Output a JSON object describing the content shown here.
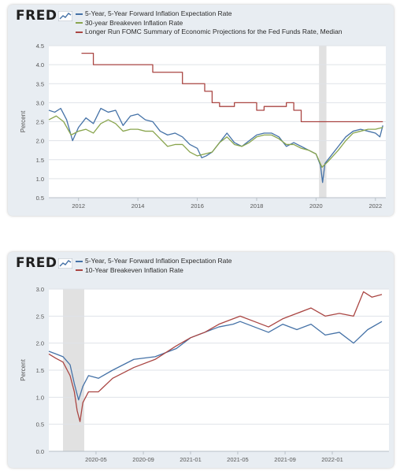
{
  "brand": {
    "logo_text": "FRED"
  },
  "colors": {
    "blue": "#4572a7",
    "green": "#89a54e",
    "red": "#aa4643",
    "recession": "#e1e1e1"
  },
  "chart_data": [
    {
      "type": "line",
      "title": "",
      "ylabel": "Percent",
      "xlabel": "",
      "ylim": [
        0.5,
        4.5
      ],
      "xlim": [
        2011.0,
        2022.35
      ],
      "y_ticks": [
        "0.5",
        "1.0",
        "1.5",
        "2.0",
        "2.5",
        "3.0",
        "3.5",
        "4.0",
        "4.5"
      ],
      "x_ticks": [
        "2012",
        "2014",
        "2016",
        "2018",
        "2020",
        "2022"
      ],
      "x_tick_values": [
        2012,
        2014,
        2016,
        2018,
        2020,
        2022
      ],
      "grid": true,
      "legend_position": "top-left",
      "shaded_periods": [
        [
          2020.1,
          2020.35
        ]
      ],
      "series": [
        {
          "name": "5-Year, 5-Year Forward Inflation Expectation Rate",
          "color": "#4572a7",
          "x": [
            2011.0,
            2011.2,
            2011.4,
            2011.6,
            2011.8,
            2012.0,
            2012.25,
            2012.5,
            2012.75,
            2013.0,
            2013.25,
            2013.5,
            2013.75,
            2014.0,
            2014.25,
            2014.5,
            2014.75,
            2015.0,
            2015.25,
            2015.5,
            2015.75,
            2016.0,
            2016.15,
            2016.3,
            2016.5,
            2016.75,
            2017.0,
            2017.25,
            2017.5,
            2017.75,
            2018.0,
            2018.25,
            2018.5,
            2018.75,
            2019.0,
            2019.25,
            2019.5,
            2019.75,
            2020.0,
            2020.15,
            2020.22,
            2020.3,
            2020.5,
            2020.75,
            2021.0,
            2021.25,
            2021.5,
            2021.75,
            2022.0,
            2022.15,
            2022.25
          ],
          "y": [
            2.8,
            2.75,
            2.85,
            2.55,
            2.0,
            2.35,
            2.6,
            2.45,
            2.85,
            2.75,
            2.8,
            2.4,
            2.65,
            2.7,
            2.55,
            2.5,
            2.25,
            2.15,
            2.2,
            2.1,
            1.9,
            1.8,
            1.55,
            1.6,
            1.7,
            1.95,
            2.2,
            1.95,
            1.85,
            2.0,
            2.15,
            2.2,
            2.2,
            2.1,
            1.85,
            1.95,
            1.85,
            1.75,
            1.65,
            1.35,
            0.9,
            1.4,
            1.6,
            1.85,
            2.1,
            2.25,
            2.3,
            2.25,
            2.2,
            2.1,
            2.4
          ]
        },
        {
          "name": "30-year Breakeven Inflation Rate",
          "color": "#89a54e",
          "x": [
            2011.0,
            2011.25,
            2011.5,
            2011.75,
            2012.0,
            2012.25,
            2012.5,
            2012.75,
            2013.0,
            2013.25,
            2013.5,
            2013.75,
            2014.0,
            2014.25,
            2014.5,
            2014.75,
            2015.0,
            2015.25,
            2015.5,
            2015.75,
            2016.0,
            2016.25,
            2016.5,
            2016.75,
            2017.0,
            2017.25,
            2017.5,
            2017.75,
            2018.0,
            2018.25,
            2018.5,
            2018.75,
            2019.0,
            2019.25,
            2019.5,
            2019.75,
            2020.0,
            2020.2,
            2020.4,
            2020.75,
            2021.0,
            2021.25,
            2021.5,
            2021.75,
            2022.0,
            2022.25
          ],
          "y": [
            2.55,
            2.65,
            2.5,
            2.15,
            2.25,
            2.3,
            2.2,
            2.45,
            2.55,
            2.45,
            2.25,
            2.3,
            2.3,
            2.25,
            2.25,
            2.05,
            1.85,
            1.9,
            1.9,
            1.7,
            1.6,
            1.65,
            1.7,
            1.95,
            2.1,
            1.9,
            1.85,
            1.95,
            2.1,
            2.15,
            2.15,
            2.05,
            1.9,
            1.9,
            1.8,
            1.75,
            1.65,
            1.3,
            1.45,
            1.75,
            2.0,
            2.2,
            2.25,
            2.3,
            2.3,
            2.35
          ]
        },
        {
          "name": "Longer Run FOMC Summary of Economic Projections for the Fed Funds Rate, Median",
          "color": "#aa4643",
          "step": true,
          "x": [
            2012.1,
            2012.5,
            2013.25,
            2014.5,
            2015.5,
            2016.0,
            2016.25,
            2016.5,
            2016.75,
            2017.25,
            2018.0,
            2018.25,
            2018.5,
            2019.0,
            2019.25,
            2019.5,
            2022.25
          ],
          "y": [
            4.3,
            4.0,
            4.0,
            3.8,
            3.5,
            3.5,
            3.3,
            3.0,
            2.9,
            3.0,
            2.8,
            2.9,
            2.9,
            3.0,
            2.8,
            2.5,
            2.5
          ]
        }
      ]
    },
    {
      "type": "line",
      "title": "",
      "ylabel": "Percent",
      "xlabel": "",
      "ylim": [
        0.0,
        3.0
      ],
      "xlim": [
        2020.0,
        2022.4
      ],
      "y_ticks": [
        "0.0",
        "0.5",
        "1.0",
        "1.5",
        "2.0",
        "2.5",
        "3.0"
      ],
      "x_ticks": [
        "2020-05",
        "2020-09",
        "2021-01",
        "2021-05",
        "2021-09",
        "2022-01"
      ],
      "x_tick_values": [
        2020.333,
        2020.667,
        2021.0,
        2021.333,
        2021.667,
        2022.0
      ],
      "grid": true,
      "legend_position": "top-left",
      "shaded_periods": [
        [
          2020.1,
          2020.25
        ]
      ],
      "series": [
        {
          "name": "5-Year, 5-Year Forward Inflation Expectation Rate",
          "color": "#4572a7",
          "x": [
            2020.0,
            2020.05,
            2020.1,
            2020.15,
            2020.18,
            2020.21,
            2020.24,
            2020.28,
            2020.35,
            2020.45,
            2020.6,
            2020.75,
            2020.9,
            2021.0,
            2021.1,
            2021.2,
            2021.3,
            2021.35,
            2021.45,
            2021.55,
            2021.65,
            2021.75,
            2021.85,
            2021.95,
            2022.05,
            2022.15,
            2022.25,
            2022.35
          ],
          "y": [
            1.85,
            1.8,
            1.75,
            1.6,
            1.25,
            0.95,
            1.2,
            1.4,
            1.35,
            1.5,
            1.7,
            1.75,
            1.9,
            2.1,
            2.2,
            2.3,
            2.35,
            2.4,
            2.3,
            2.2,
            2.35,
            2.25,
            2.35,
            2.15,
            2.2,
            2.0,
            2.25,
            2.4
          ]
        },
        {
          "name": "10-Year Breakeven Inflation Rate",
          "color": "#aa4643",
          "x": [
            2020.0,
            2020.05,
            2020.1,
            2020.15,
            2020.18,
            2020.2,
            2020.22,
            2020.24,
            2020.28,
            2020.35,
            2020.45,
            2020.6,
            2020.75,
            2020.9,
            2021.0,
            2021.1,
            2021.2,
            2021.3,
            2021.35,
            2021.45,
            2021.55,
            2021.65,
            2021.75,
            2021.85,
            2021.95,
            2022.05,
            2022.15,
            2022.22,
            2022.28,
            2022.35
          ],
          "y": [
            1.8,
            1.72,
            1.65,
            1.4,
            1.1,
            0.75,
            0.55,
            0.9,
            1.1,
            1.1,
            1.35,
            1.55,
            1.7,
            1.95,
            2.1,
            2.2,
            2.35,
            2.45,
            2.5,
            2.4,
            2.3,
            2.45,
            2.55,
            2.65,
            2.5,
            2.55,
            2.5,
            2.95,
            2.85,
            2.9
          ]
        }
      ]
    }
  ]
}
